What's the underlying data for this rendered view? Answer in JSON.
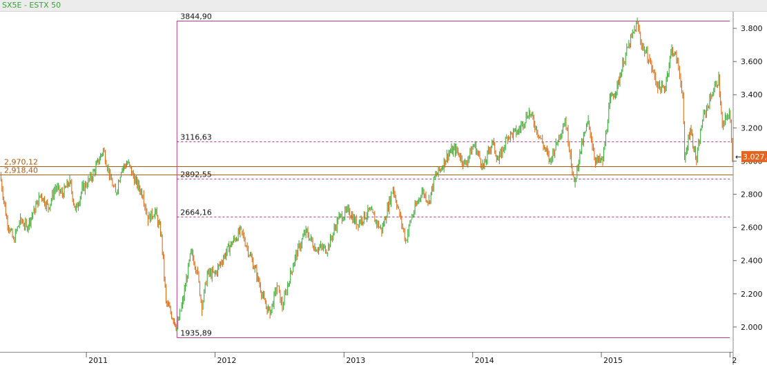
{
  "window": {
    "title": "SX5E - ESTX 50"
  },
  "chart_data": {
    "type": "line",
    "ylim": [
      1850,
      3900
    ],
    "xlim": [
      "2010-05-01",
      "2016-01-10"
    ],
    "x_ticks": [
      {
        "label": "2011",
        "date": "2011-01-01"
      },
      {
        "label": "2012",
        "date": "2012-01-01"
      },
      {
        "label": "2013",
        "date": "2013-01-01"
      },
      {
        "label": "2014",
        "date": "2014-01-01"
      },
      {
        "label": "2015",
        "date": "2015-01-01"
      },
      {
        "label": "2",
        "date": "2016-01-01"
      }
    ],
    "y_ticks": [
      {
        "label": "2.000",
        "value": 2000
      },
      {
        "label": "2.200",
        "value": 2200
      },
      {
        "label": "2.400",
        "value": 2400
      },
      {
        "label": "2.600",
        "value": 2600
      },
      {
        "label": "2.800",
        "value": 2800
      },
      {
        "label": "3.000",
        "value": 3000
      },
      {
        "label": "3.200",
        "value": 3200
      },
      {
        "label": "3.400",
        "value": 3400
      },
      {
        "label": "3.600",
        "value": 3600
      },
      {
        "label": "3.800",
        "value": 3800
      }
    ],
    "series": [
      {
        "color_up": "#3cae3c",
        "color_down": "#dc6e18",
        "points": [
          [
            "2010-05-01",
            2920
          ],
          [
            "2010-05-20",
            2650
          ],
          [
            "2010-06-08",
            2520
          ],
          [
            "2010-06-28",
            2650
          ],
          [
            "2010-07-15",
            2600
          ],
          [
            "2010-08-05",
            2700
          ],
          [
            "2010-08-25",
            2800
          ],
          [
            "2010-09-15",
            2720
          ],
          [
            "2010-10-05",
            2840
          ],
          [
            "2010-10-25",
            2800
          ],
          [
            "2010-11-15",
            2880
          ],
          [
            "2010-12-01",
            2700
          ],
          [
            "2010-12-20",
            2830
          ],
          [
            "2011-01-15",
            2900
          ],
          [
            "2011-02-05",
            3000
          ],
          [
            "2011-02-18",
            3070
          ],
          [
            "2011-03-10",
            2900
          ],
          [
            "2011-03-25",
            2800
          ],
          [
            "2011-04-10",
            2950
          ],
          [
            "2011-04-28",
            2990
          ],
          [
            "2011-05-20",
            2880
          ],
          [
            "2011-06-10",
            2800
          ],
          [
            "2011-06-25",
            2650
          ],
          [
            "2011-07-15",
            2700
          ],
          [
            "2011-08-02",
            2550
          ],
          [
            "2011-08-15",
            2150
          ],
          [
            "2011-09-05",
            2050
          ],
          [
            "2011-09-15",
            1995
          ],
          [
            "2011-10-01",
            2150
          ],
          [
            "2011-10-25",
            2450
          ],
          [
            "2011-11-10",
            2350
          ],
          [
            "2011-11-25",
            2120
          ],
          [
            "2011-12-10",
            2320
          ],
          [
            "2012-01-01",
            2320
          ],
          [
            "2012-01-25",
            2420
          ],
          [
            "2012-02-15",
            2500
          ],
          [
            "2012-03-15",
            2580
          ],
          [
            "2012-04-10",
            2430
          ],
          [
            "2012-05-01",
            2300
          ],
          [
            "2012-05-20",
            2150
          ],
          [
            "2012-06-05",
            2080
          ],
          [
            "2012-06-25",
            2250
          ],
          [
            "2012-07-10",
            2120
          ],
          [
            "2012-07-25",
            2250
          ],
          [
            "2012-08-15",
            2420
          ],
          [
            "2012-09-15",
            2580
          ],
          [
            "2012-10-10",
            2480
          ],
          [
            "2012-11-15",
            2470
          ],
          [
            "2012-12-15",
            2650
          ],
          [
            "2013-01-15",
            2700
          ],
          [
            "2013-02-05",
            2620
          ],
          [
            "2013-03-15",
            2700
          ],
          [
            "2013-04-18",
            2580
          ],
          [
            "2013-05-20",
            2840
          ],
          [
            "2013-06-05",
            2700
          ],
          [
            "2013-06-25",
            2520
          ],
          [
            "2013-07-10",
            2650
          ],
          [
            "2013-08-10",
            2820
          ],
          [
            "2013-08-30",
            2760
          ],
          [
            "2013-09-15",
            2900
          ],
          [
            "2013-10-01",
            2950
          ],
          [
            "2013-10-25",
            3050
          ],
          [
            "2013-11-15",
            3070
          ],
          [
            "2013-12-10",
            2980
          ],
          [
            "2014-01-05",
            3100
          ],
          [
            "2014-02-01",
            2960
          ],
          [
            "2014-02-25",
            3120
          ],
          [
            "2014-03-15",
            3000
          ],
          [
            "2014-04-10",
            3150
          ],
          [
            "2014-05-10",
            3180
          ],
          [
            "2014-06-10",
            3300
          ],
          [
            "2014-07-10",
            3150
          ],
          [
            "2014-08-08",
            3000
          ],
          [
            "2014-08-25",
            3100
          ],
          [
            "2014-09-20",
            3250
          ],
          [
            "2014-10-05",
            3050
          ],
          [
            "2014-10-16",
            2850
          ],
          [
            "2014-11-01",
            3050
          ],
          [
            "2014-11-25",
            3240
          ],
          [
            "2014-12-15",
            3000
          ],
          [
            "2015-01-05",
            3000
          ],
          [
            "2015-01-25",
            3360
          ],
          [
            "2015-02-15",
            3450
          ],
          [
            "2015-03-05",
            3600
          ],
          [
            "2015-03-20",
            3700
          ],
          [
            "2015-04-13",
            3830
          ],
          [
            "2015-04-25",
            3700
          ],
          [
            "2015-05-15",
            3620
          ],
          [
            "2015-06-10",
            3450
          ],
          [
            "2015-06-29",
            3430
          ],
          [
            "2015-07-20",
            3680
          ],
          [
            "2015-08-05",
            3600
          ],
          [
            "2015-08-20",
            3400
          ],
          [
            "2015-08-25",
            3000
          ],
          [
            "2015-09-10",
            3200
          ],
          [
            "2015-09-28",
            3000
          ],
          [
            "2015-10-15",
            3250
          ],
          [
            "2015-11-10",
            3400
          ],
          [
            "2015-11-30",
            3500
          ],
          [
            "2015-12-10",
            3200
          ],
          [
            "2015-12-30",
            3300
          ],
          [
            "2016-01-08",
            3027
          ]
        ]
      }
    ],
    "horizontal_lines": [
      {
        "value": 3844.9,
        "label": "3844,90",
        "style": "solid",
        "color": "#c03a8a",
        "label_side": "left"
      },
      {
        "value": 3116.63,
        "label": "3116,63",
        "style": "dashed",
        "color": "#c03a8a",
        "label_side": "left"
      },
      {
        "value": 2892.55,
        "label": "2892,55",
        "style": "dashed",
        "color": "#c03a8a",
        "label_side": "left"
      },
      {
        "value": 2664.16,
        "label": "2664,16",
        "style": "dashed",
        "color": "#c03a8a",
        "label_side": "left"
      },
      {
        "value": 1935.89,
        "label": "1935,89",
        "style": "solid",
        "color": "#c03a8a",
        "label_side": "left"
      },
      {
        "value": 2970.12,
        "label": "2,970,12",
        "style": "solid",
        "color": "#b05a10",
        "label_side": "full"
      },
      {
        "value": 2918.4,
        "label": "2,918,40",
        "style": "solid",
        "color": "#b05a10",
        "label_side": "full"
      }
    ],
    "fib_anchor_date": "2011-09-15",
    "current_price": {
      "value": 3027,
      "label": "3.027,"
    }
  }
}
